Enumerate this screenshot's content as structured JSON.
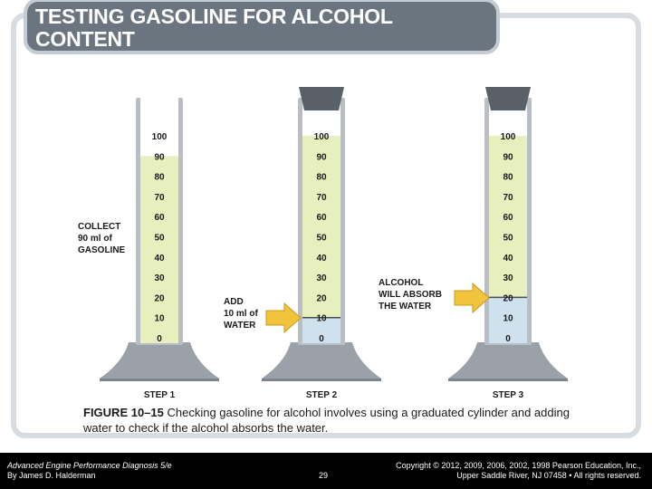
{
  "slide": {
    "title": "TESTING GASOLINE FOR ALCOHOL CONTENT"
  },
  "diagram": {
    "scale_labels": [
      "100",
      "90",
      "80",
      "70",
      "60",
      "50",
      "40",
      "30",
      "20",
      "10",
      "0"
    ],
    "steps": [
      {
        "label": "STEP 1",
        "callout": [
          "COLLECT",
          "90 ml of",
          "GASOLINE"
        ],
        "has_stopper": false,
        "gasoline_ml": 90,
        "water_ml": 0
      },
      {
        "label": "STEP 2",
        "callout": [
          "ADD",
          "10 ml of",
          "WATER"
        ],
        "has_stopper": true,
        "gasoline_ml": 90,
        "water_ml": 10
      },
      {
        "label": "STEP 3",
        "callout": [
          "ALCOHOL",
          "WILL ABSORB",
          "THE WATER"
        ],
        "has_stopper": true,
        "gasoline_ml": 80,
        "water_ml": 20
      }
    ],
    "colors": {
      "gasoline": "#e8efbf",
      "water": "#cfe1ec",
      "cylinder": "#ffffff",
      "base": "#9aa1a8",
      "stopper": "#5a6068",
      "arrow": "#f2c33c"
    }
  },
  "caption": {
    "figure_label": "FIGURE 10–15",
    "text": " Checking gasoline for alcohol involves using a graduated cylinder and adding water to check if the alcohol absorbs the water."
  },
  "footer": {
    "book_title": "Advanced Engine Performance Diagnosis 5/e",
    "author": "By James D. Halderman",
    "page_number": "29",
    "copyright_line1": "Copyright © 2012, 2009, 2006, 2002, 1998 Pearson Education, Inc.,",
    "copyright_line2": "Upper Saddle River, NJ 07458 • All rights reserved."
  }
}
